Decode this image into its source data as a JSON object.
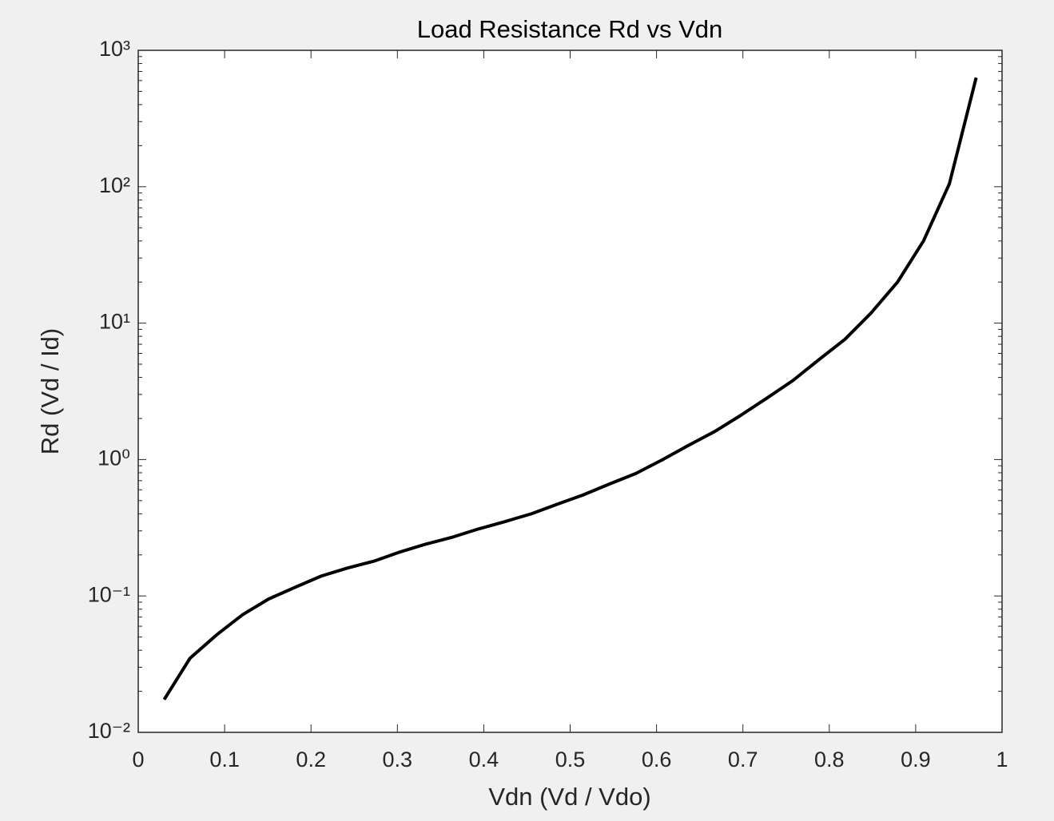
{
  "chart_data": {
    "type": "line",
    "title": "Load Resistance Rd vs Vdn",
    "x_label": "Vdn (Vd / Vdo)",
    "y_label": "Rd (Vd / Id)",
    "x": [
      0.03,
      0.06,
      0.091,
      0.121,
      0.151,
      0.182,
      0.212,
      0.242,
      0.273,
      0.303,
      0.333,
      0.364,
      0.394,
      0.424,
      0.455,
      0.485,
      0.515,
      0.545,
      0.576,
      0.606,
      0.636,
      0.667,
      0.697,
      0.727,
      0.758,
      0.788,
      0.818,
      0.848,
      0.879,
      0.909,
      0.939,
      0.97
    ],
    "series": [
      {
        "color": "#000000",
        "values": [
          0.0174,
          0.035,
          0.052,
          0.073,
          0.095,
          0.116,
          0.14,
          0.16,
          0.18,
          0.21,
          0.24,
          0.27,
          0.31,
          0.35,
          0.4,
          0.47,
          0.55,
          0.66,
          0.79,
          0.99,
          1.26,
          1.6,
          2.1,
          2.8,
          3.8,
          5.4,
          7.6,
          11.8,
          20,
          40,
          105,
          630
        ]
      }
    ],
    "xlim": [
      0,
      1
    ],
    "xticks": [
      0,
      0.1,
      0.2,
      0.3,
      0.4,
      0.5,
      0.6,
      0.7,
      0.8,
      0.9,
      1
    ],
    "ylim": [
      0.01,
      1000
    ],
    "y_scale": "log",
    "yticks": [
      {
        "value": 0.01,
        "label": "10⁻²"
      },
      {
        "value": 0.1,
        "label": "10⁻¹"
      },
      {
        "value": 1,
        "label": "10⁰"
      },
      {
        "value": 10,
        "label": "10¹"
      },
      {
        "value": 100,
        "label": "10²"
      },
      {
        "value": 1000,
        "label": "10³"
      }
    ],
    "grid": false
  }
}
